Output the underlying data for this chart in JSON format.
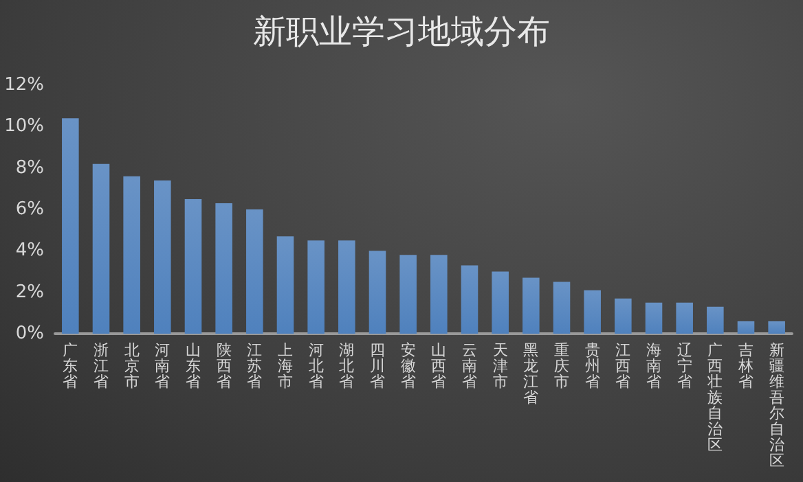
{
  "chart_data": {
    "type": "bar",
    "title": "新职业学习地域分布",
    "categories": [
      "广东省",
      "浙江省",
      "北京市",
      "河南省",
      "山东省",
      "陕西省",
      "江苏省",
      "上海市",
      "河北省",
      "湖北省",
      "四川省",
      "安徽省",
      "山西省",
      "云南省",
      "天津市",
      "黑龙江省",
      "重庆市",
      "贵州省",
      "江西省",
      "海南省",
      "辽宁省",
      "广西壮族自治区",
      "吉林省",
      "新疆维吾尔自治区"
    ],
    "values": [
      10.4,
      8.2,
      7.6,
      7.4,
      6.5,
      6.3,
      6.0,
      4.7,
      4.5,
      4.5,
      4.0,
      3.8,
      3.8,
      3.3,
      3.0,
      2.7,
      2.5,
      2.1,
      1.7,
      1.5,
      1.5,
      1.3,
      0.6,
      0.6
    ],
    "color": "#4f81bd",
    "ylim": [
      0,
      12
    ],
    "yticks": [
      {
        "value": 0,
        "label": "0%"
      },
      {
        "value": 2,
        "label": "2%"
      },
      {
        "value": 4,
        "label": "4%"
      },
      {
        "value": 6,
        "label": "6%"
      },
      {
        "value": 8,
        "label": "8%"
      },
      {
        "value": 10,
        "label": "10%"
      },
      {
        "value": 12,
        "label": "12%"
      }
    ],
    "grid": false
  }
}
